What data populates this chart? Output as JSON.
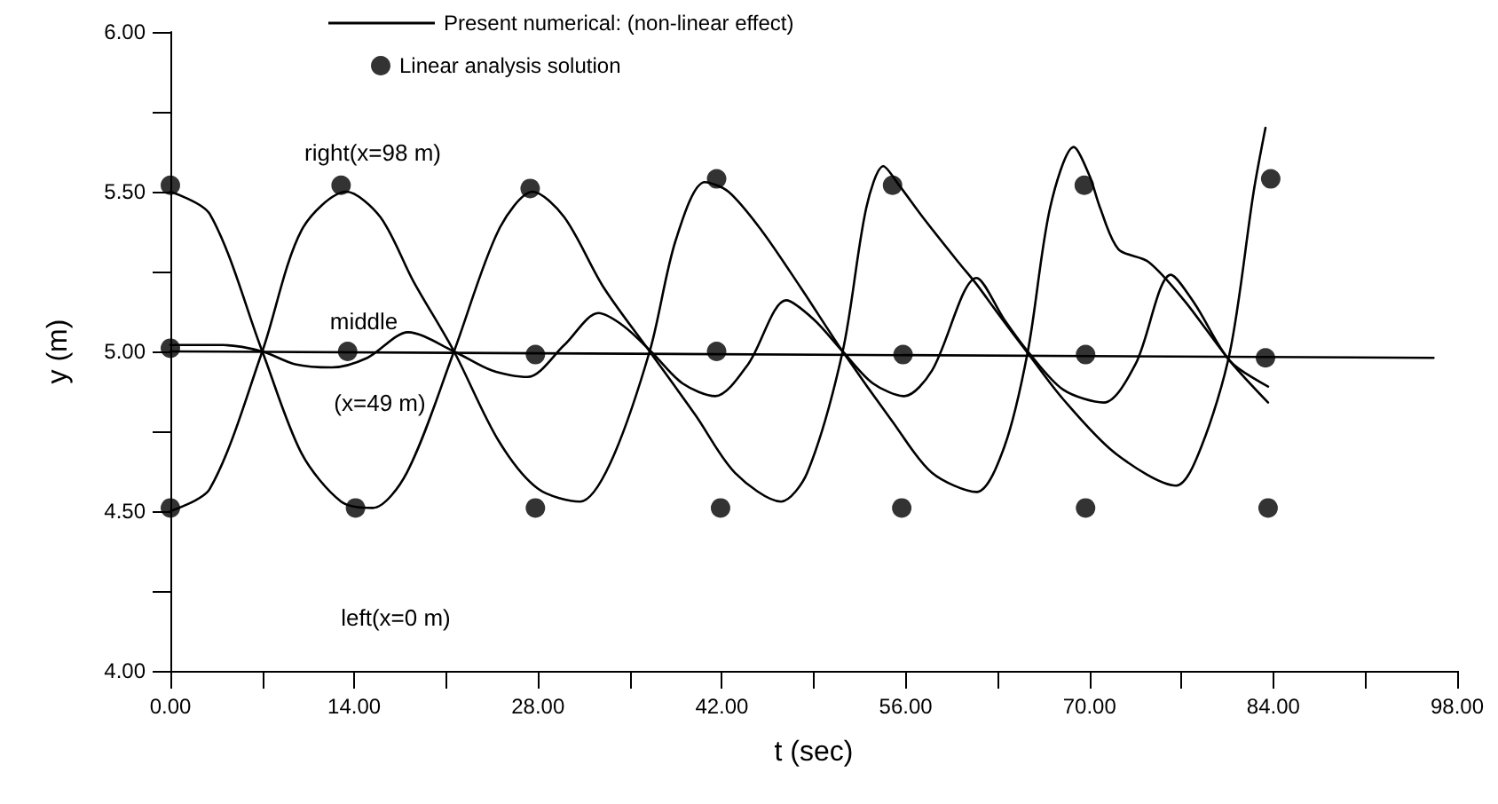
{
  "chart_data": {
    "type": "line",
    "xlabel": "t (sec)",
    "ylabel": "y (m)",
    "legend": "top",
    "grid": false,
    "xlim": [
      0,
      98
    ],
    "xticks": [
      {
        "value": 0,
        "label": "0.00"
      },
      {
        "value": 7,
        "label": null
      },
      {
        "value": 14,
        "label": "14.00"
      },
      {
        "value": 21,
        "label": null
      },
      {
        "value": 28,
        "label": "28.00"
      },
      {
        "value": 35,
        "label": null
      },
      {
        "value": 42,
        "label": "42.00"
      },
      {
        "value": 49,
        "label": null
      },
      {
        "value": 56,
        "label": "56.00"
      },
      {
        "value": 63,
        "label": null
      },
      {
        "value": 70,
        "label": "70.00"
      },
      {
        "value": 77,
        "label": null
      },
      {
        "value": 84,
        "label": "84.00"
      },
      {
        "value": 91,
        "label": null
      },
      {
        "value": 98,
        "label": "98.00"
      }
    ],
    "ylim": [
      4,
      6
    ],
    "yticks": [
      {
        "value": 4,
        "label": "4.00"
      },
      {
        "value": 4.25,
        "label": null
      },
      {
        "value": 4.5,
        "label": "4.50"
      },
      {
        "value": 4.75,
        "label": null
      },
      {
        "value": 5,
        "label": "5.00"
      },
      {
        "value": 5.25,
        "label": null
      },
      {
        "value": 5.5,
        "label": "5.50"
      },
      {
        "value": 5.75,
        "label": null
      },
      {
        "value": 6,
        "label": "6.00"
      }
    ],
    "series": [
      {
        "name": "Present numerical: (non-linear effect)",
        "marker": "none",
        "color": "#000000",
        "x": [
          0,
          3,
          7,
          10,
          13,
          15.4,
          18,
          21.6,
          25,
          27.6,
          30,
          33,
          36.5,
          40,
          43,
          46.5,
          48.5,
          51.2,
          53,
          54.3,
          55.5,
          57.3,
          60,
          61.4,
          63,
          65.2,
          68,
          72,
          76.6,
          78.5,
          80.7,
          82.5,
          83.4
        ],
        "values": [
          5.5,
          5.43,
          5.0,
          4.68,
          4.53,
          4.51,
          4.62,
          5.0,
          5.38,
          5.5,
          5.42,
          5.2,
          5.0,
          4.8,
          4.62,
          4.53,
          4.62,
          5.0,
          5.45,
          5.58,
          5.52,
          5.42,
          5.28,
          5.21,
          5.12,
          5.0,
          4.85,
          4.68,
          4.58,
          4.7,
          5.0,
          5.5,
          5.7
        ]
      },
      {
        "marker": "none",
        "color": "#000000",
        "x": [
          0,
          3,
          7,
          10,
          13.4,
          16,
          18.5,
          21.6,
          25,
          28,
          31.2,
          33.5,
          36.5,
          38.5,
          40.7,
          42.5,
          45,
          48,
          51.2,
          55,
          58,
          61.4,
          63.5,
          65.3,
          67,
          68.8,
          70,
          70.8,
          72.2,
          74.5,
          77.2,
          80.7,
          83.6
        ],
        "values": [
          4.5,
          4.57,
          5.0,
          5.38,
          5.5,
          5.42,
          5.22,
          5.0,
          4.72,
          4.57,
          4.53,
          4.65,
          5.0,
          5.35,
          5.53,
          5.5,
          5.38,
          5.2,
          5.0,
          4.78,
          4.62,
          4.56,
          4.7,
          5.0,
          5.45,
          5.64,
          5.55,
          5.45,
          5.32,
          5.28,
          5.16,
          4.97,
          4.84
        ]
      },
      {
        "marker": "none",
        "color": "#000000",
        "x": [
          0,
          4,
          7,
          9.5,
          12.3,
          15,
          18.1,
          21.6,
          24.5,
          27.2,
          30,
          32.6,
          34.5,
          36.6,
          39,
          41.5,
          44,
          46.9,
          49,
          51.2,
          53.5,
          55.9,
          58,
          61.4,
          63.5,
          65.3,
          68,
          71.1,
          73.5,
          76.2,
          78,
          80.7,
          83.6
        ],
        "values": [
          5.02,
          5.02,
          5.0,
          4.96,
          4.95,
          4.98,
          5.06,
          5.0,
          4.94,
          4.92,
          5.02,
          5.12,
          5.08,
          5.0,
          4.9,
          4.86,
          4.96,
          5.16,
          5.1,
          5.0,
          4.9,
          4.86,
          4.94,
          5.23,
          5.1,
          5.0,
          4.88,
          4.84,
          4.96,
          5.24,
          5.15,
          4.97,
          4.89
        ]
      },
      {
        "marker": "none",
        "color": "#000000",
        "x": [
          0,
          96.2
        ],
        "values": [
          5.0,
          4.98
        ]
      },
      {
        "name": "Linear analysis solution",
        "type": "scatter",
        "marker": "circle",
        "color": "#000000",
        "x": [
          0,
          13,
          27.4,
          41.6,
          55,
          69.6,
          83.8,
          0,
          13.5,
          27.8,
          41.6,
          55.8,
          69.7,
          83.4,
          0,
          14.1,
          27.8,
          41.9,
          55.7,
          69.7,
          83.6
        ],
        "values": [
          5.52,
          5.52,
          5.51,
          5.54,
          5.52,
          5.52,
          5.54,
          5.01,
          5.0,
          4.99,
          5.0,
          4.99,
          4.99,
          4.98,
          4.51,
          4.51,
          4.51,
          4.51,
          4.51,
          4.51,
          4.51
        ]
      }
    ],
    "annotations": [
      "right(x=98 m)",
      "middle",
      "(x=49 m)",
      "left(x=0 m)"
    ]
  }
}
